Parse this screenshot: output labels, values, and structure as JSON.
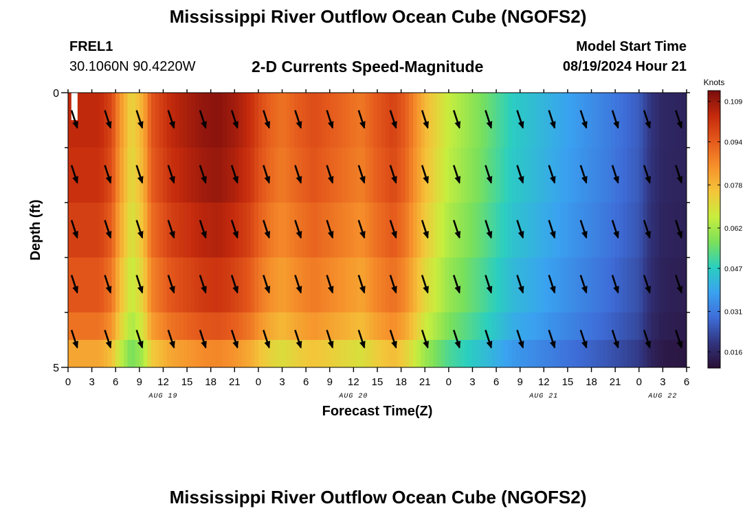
{
  "header": {
    "title": "Mississippi River Outflow Ocean Cube (NGOFS2)",
    "station": "FREL1",
    "coords": "30.1060N  90.4220W",
    "subtitle": "2-D Currents Speed-Magnitude",
    "model_start_label": "Model Start Time",
    "model_start_value": "08/19/2024 Hour 21"
  },
  "footer": {
    "title": "Mississippi River Outflow Ocean Cube (NGOFS2)"
  },
  "chart_data": {
    "type": "heatmap",
    "title": "2-D Currents Speed-Magnitude",
    "xlabel": "Forecast Time(Z)",
    "ylabel": "Depth (ft)",
    "x_hours": [
      0,
      3,
      6,
      9,
      12,
      15,
      18,
      21,
      0,
      3,
      6,
      9,
      12,
      15,
      18,
      21,
      0,
      3,
      6,
      9,
      12,
      15,
      18,
      21,
      0,
      3,
      6
    ],
    "x_tick_labels": [
      "0",
      "3",
      "6",
      "9",
      "12",
      "15",
      "18",
      "21",
      "0",
      "3",
      "6",
      "9",
      "12",
      "15",
      "18",
      "21",
      "0",
      "3",
      "6",
      "9",
      "12",
      "15",
      "18",
      "21",
      "0",
      "3",
      "6"
    ],
    "date_labels": [
      {
        "label": "AUG 19",
        "at_hour": 12
      },
      {
        "label": "AUG 20",
        "at_hour": 36
      },
      {
        "label": "AUG 21",
        "at_hour": 60
      },
      {
        "label": "AUG 22",
        "at_hour": 75
      }
    ],
    "xlim_hours": [
      0,
      78
    ],
    "ylim": [
      5,
      0
    ],
    "y_tick_labels": [
      {
        "value": 0,
        "label": "0"
      },
      {
        "value": 5,
        "label": "5"
      }
    ],
    "depth_layers_ft": [
      0.5,
      1.5,
      2.5,
      3.5,
      4.5
    ],
    "bottom_layer_ft": 4.75,
    "speed_profile_hours": [
      0,
      4,
      5.5,
      6.5,
      8,
      9.5,
      10.5,
      13,
      17,
      19,
      21,
      23,
      24,
      25.5,
      27,
      29,
      31,
      34,
      37,
      39,
      41,
      42.5,
      45,
      48,
      52,
      56,
      60,
      64,
      68,
      72,
      73.5,
      75,
      78
    ],
    "speed_surface_knots": [
      0.104,
      0.104,
      0.098,
      0.085,
      0.072,
      0.08,
      0.095,
      0.104,
      0.11,
      0.111,
      0.108,
      0.103,
      0.098,
      0.093,
      0.09,
      0.094,
      0.097,
      0.093,
      0.089,
      0.095,
      0.099,
      0.094,
      0.078,
      0.066,
      0.057,
      0.047,
      0.042,
      0.037,
      0.032,
      0.026,
      0.019,
      0.016,
      0.015
    ],
    "speed_layer_multiplier": [
      1.0,
      0.985,
      0.955,
      0.915,
      0.865
    ],
    "bottom_layer_multiplier": 0.78,
    "arrow_direction_deg": 162,
    "arrow_hours": [
      0.8,
      5,
      9,
      13,
      17,
      21,
      25,
      29,
      33,
      37,
      41,
      45,
      49,
      53,
      57,
      61,
      65,
      69,
      73,
      77
    ],
    "colorbar": {
      "label": "Knots",
      "min": 0.01,
      "max": 0.113,
      "ticks": [
        0.109,
        0.094,
        0.078,
        0.062,
        0.047,
        0.031,
        0.016
      ],
      "tick_labels": [
        "0.109",
        "0.094",
        "0.078",
        "0.062",
        "0.047",
        "0.031",
        "0.016"
      ],
      "colors": [
        "#2a0f35",
        "#31357f",
        "#3e6dd8",
        "#3aa2f0",
        "#2bcfbf",
        "#7be05a",
        "#c8ee3e",
        "#f4c53a",
        "#f6902b",
        "#e55a1c",
        "#c42a0c",
        "#7a0d0d"
      ]
    }
  }
}
